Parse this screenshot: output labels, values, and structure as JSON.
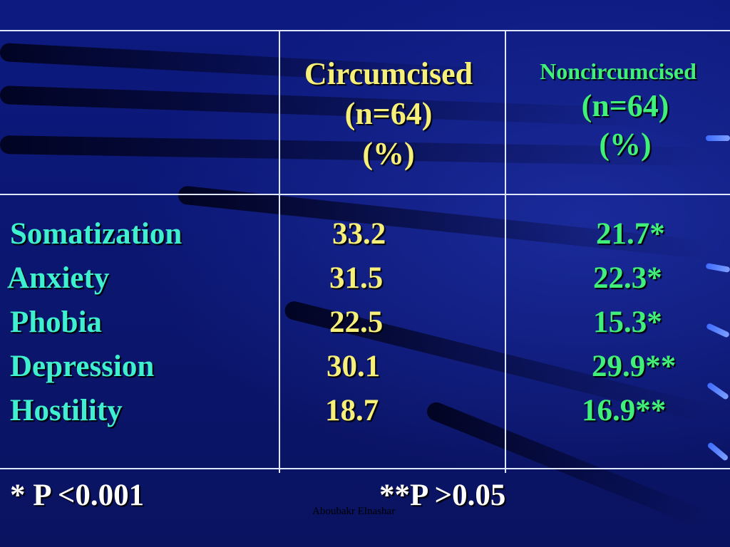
{
  "columns": {
    "circumcised": {
      "line1": "Circumcised",
      "line2": "(n=64)",
      "line3": "(%)"
    },
    "noncircumcised": {
      "line1": "Noncircumcised",
      "line2": "(n=64)",
      "line3": "(%)"
    }
  },
  "rows": [
    {
      "label": "Somatization",
      "circumcised": "33.2",
      "noncircumcised": "21.7*"
    },
    {
      "label": "Anxiety",
      "circumcised": "31.5",
      "noncircumcised": "22.3*"
    },
    {
      "label": "Phobia",
      "circumcised": "22.5",
      "noncircumcised": "15.3*"
    },
    {
      "label": "Depression",
      "circumcised": "30.1",
      "noncircumcised": "29.9**"
    },
    {
      "label": "Hostility",
      "circumcised": "18.7",
      "noncircumcised": "16.9**"
    }
  ],
  "footnotes": {
    "p1": "* P <0.001",
    "p2": "**P >0.05"
  },
  "credit": "Aboubakr Elnashar",
  "colors": {
    "label": "#3ff0d0",
    "circumcised": "#f6f07a",
    "noncircumcised": "#41f07a",
    "background": "#0a1466"
  }
}
